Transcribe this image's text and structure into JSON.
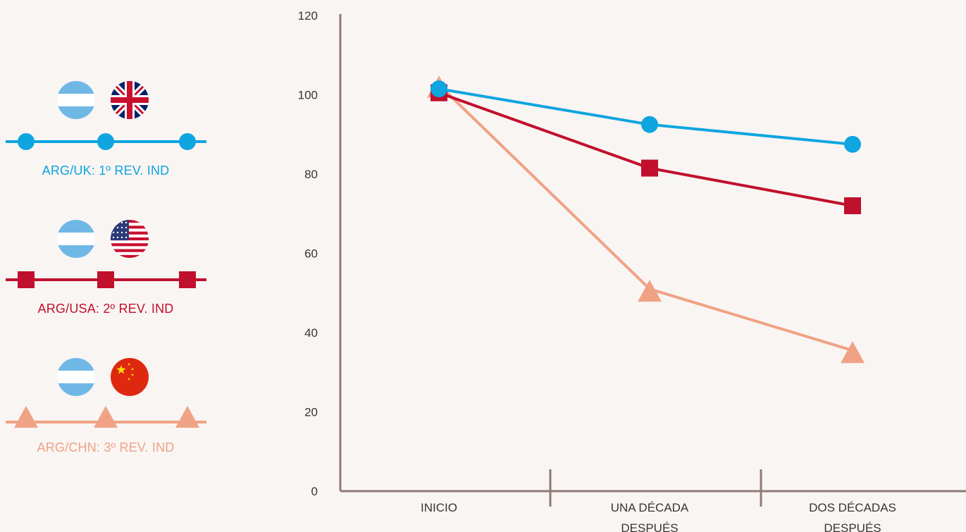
{
  "legend": [
    {
      "label": "ARG/UK: 1º REV. IND",
      "color": "#0ea5e0",
      "marker": "circle",
      "flags": [
        "argentina-flag-icon",
        "united-kingdom-flag-icon"
      ]
    },
    {
      "label": "ARG/USA: 2º REV. IND",
      "color": "#c0102d",
      "marker": "square",
      "flags": [
        "argentina-flag-icon",
        "united-states-flag-icon"
      ]
    },
    {
      "label": "ARG/CHN: 3º REV. IND",
      "color": "#f0a285",
      "marker": "triangle",
      "flags": [
        "argentina-flag-icon",
        "china-flag-icon"
      ]
    }
  ],
  "chart_data": {
    "type": "line",
    "categories": [
      "INICIO",
      "UNA DÉCADA\nDESPUÉS",
      "DOS DÉCADAS\nDESPUÉS"
    ],
    "series": [
      {
        "name": "ARG/UK: 1º REV. IND",
        "values": [
          101.5,
          92.5,
          87.5
        ],
        "color": "#0ea5e0",
        "marker": "circle"
      },
      {
        "name": "ARG/USA: 2º REV. IND",
        "values": [
          100.5,
          81.5,
          72
        ],
        "color": "#c0102d",
        "marker": "square"
      },
      {
        "name": "ARG/CHN: 3º REV. IND",
        "values": [
          102.5,
          51,
          35.5
        ],
        "color": "#f0a285",
        "marker": "triangle"
      }
    ],
    "ylim": [
      0,
      120
    ],
    "yticks": [
      0,
      20,
      40,
      60,
      80,
      100,
      120
    ],
    "xlabel": "",
    "ylabel": "",
    "title": "",
    "grid": false,
    "legend_position": "left"
  }
}
